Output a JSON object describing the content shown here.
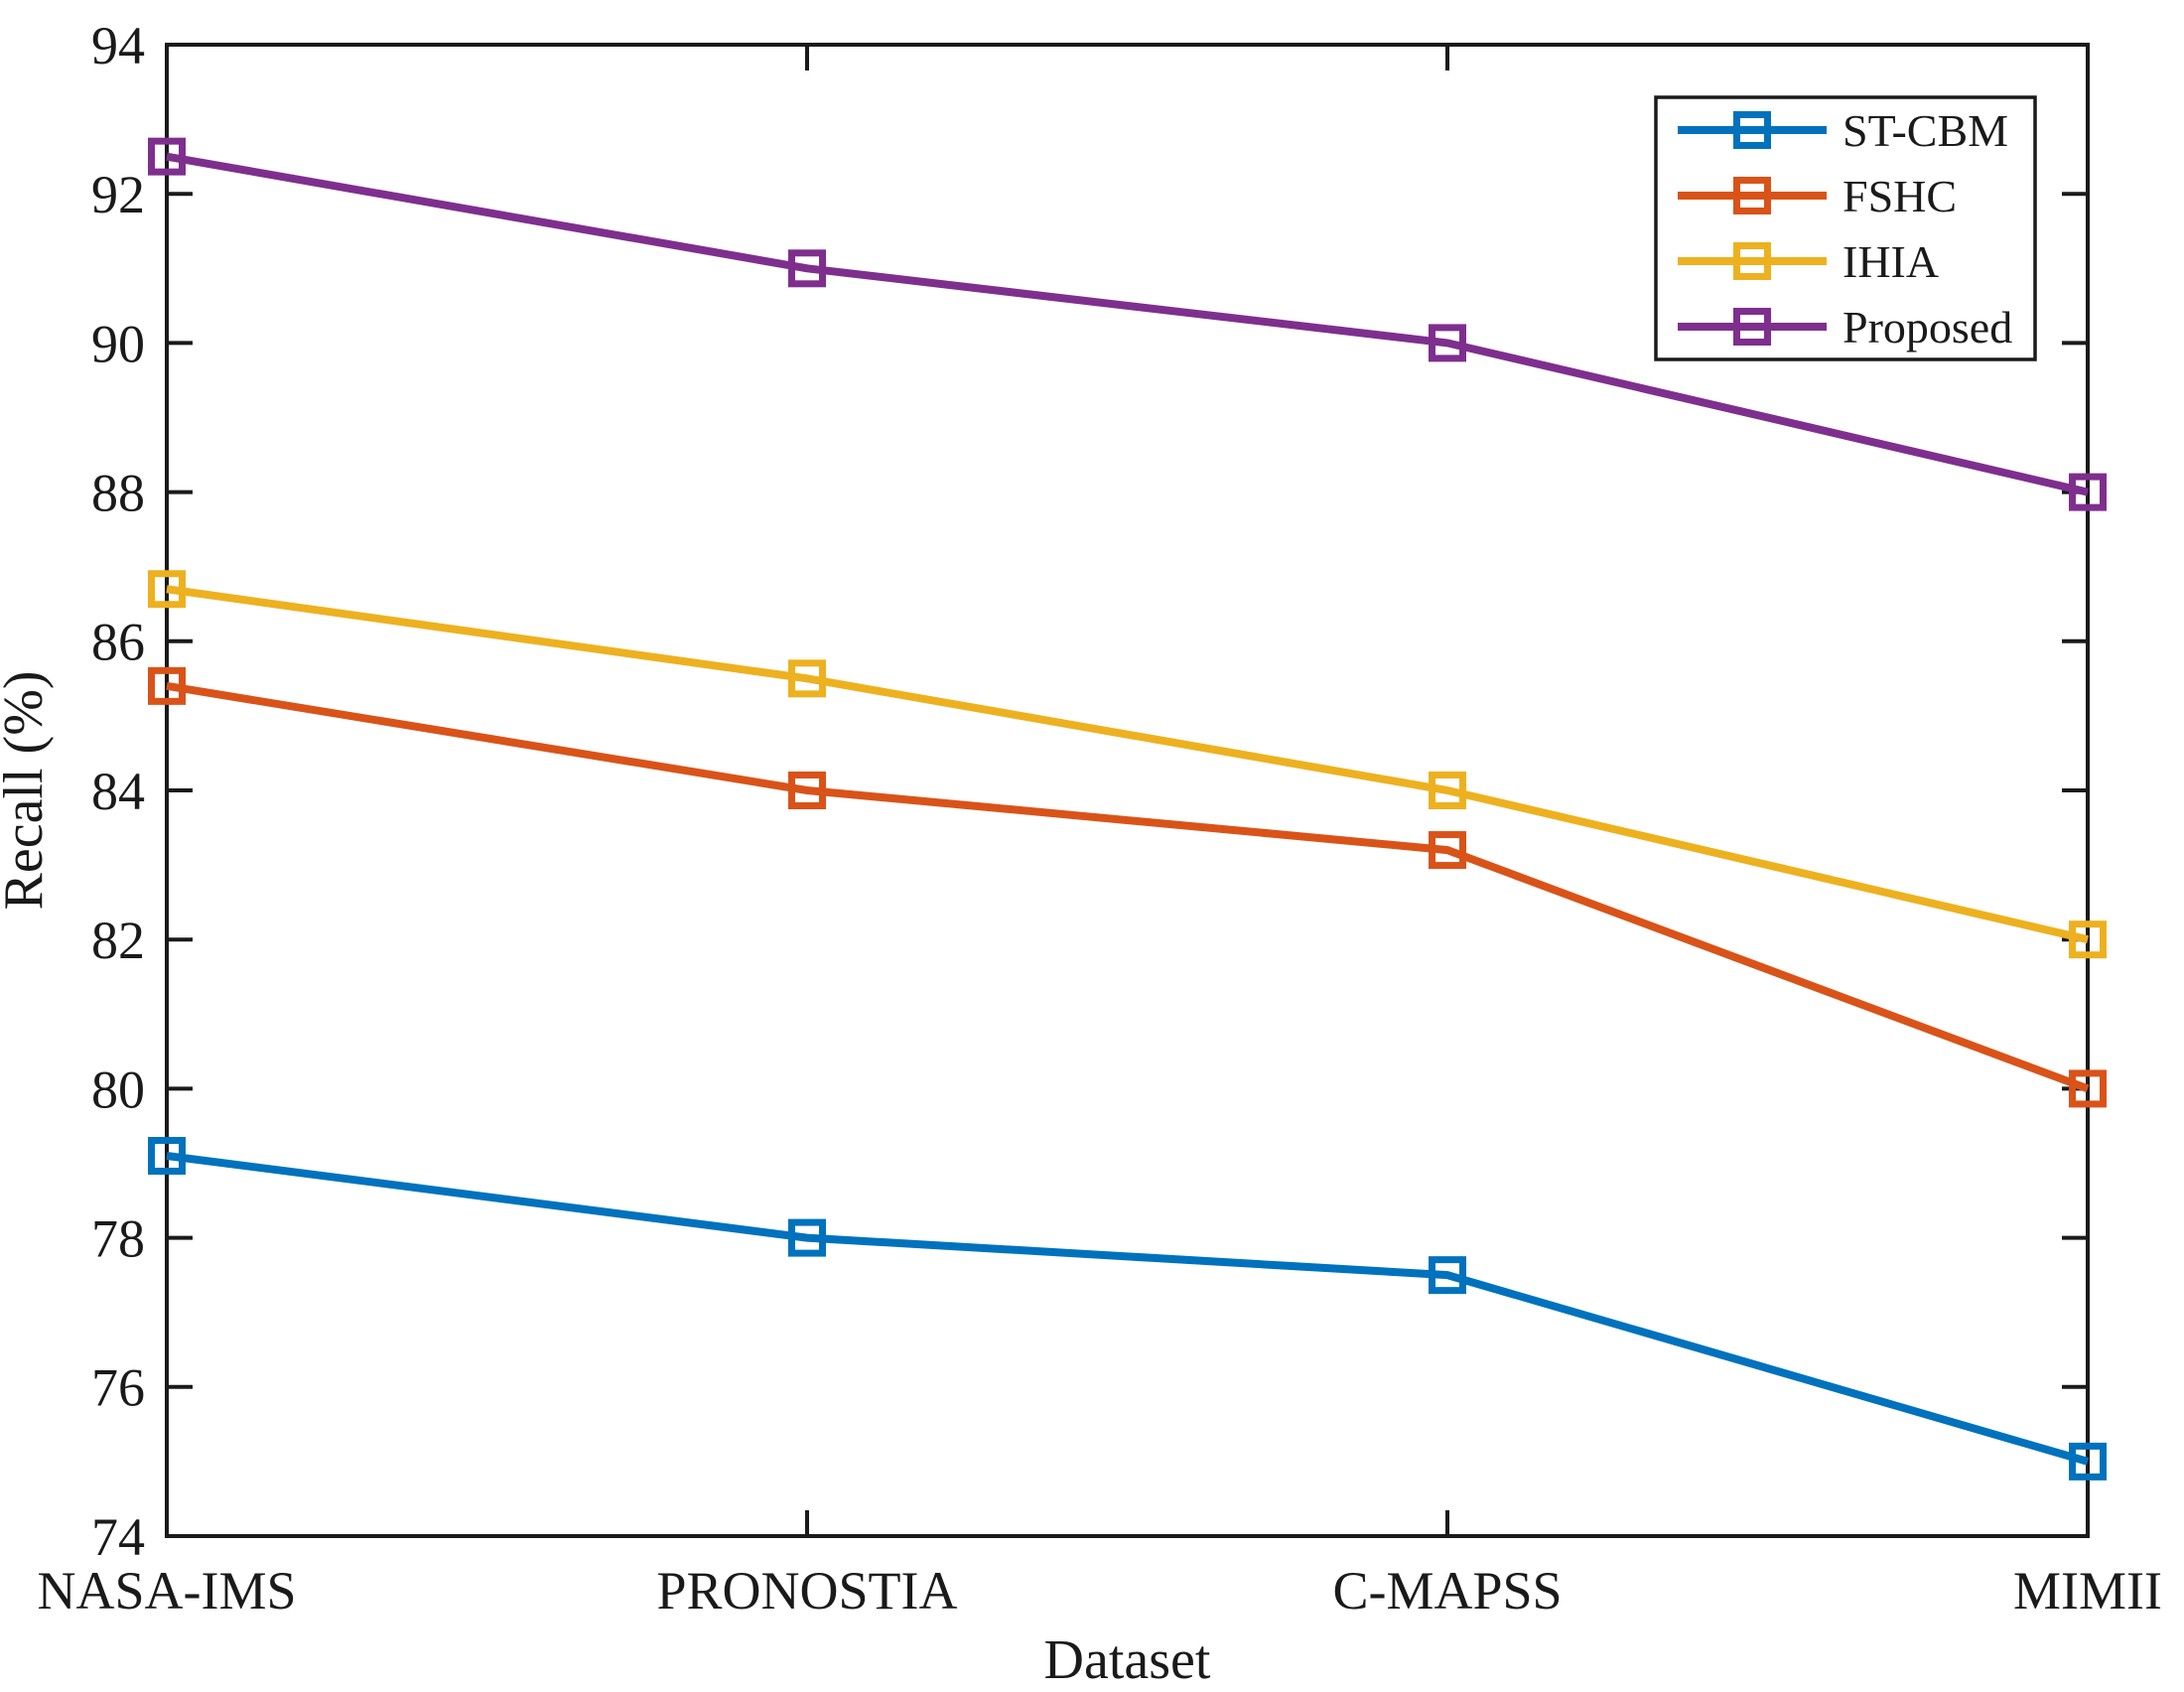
{
  "figure": {
    "xlabel": "Dataset",
    "ylabel": "Recall (%)"
  },
  "chart_data": {
    "type": "line",
    "title": "",
    "xlabel": "Dataset",
    "ylabel": "Recall (%)",
    "categories": [
      "NASA-IMS",
      "PRONOSTIA",
      "C-MAPSS",
      "MIMII"
    ],
    "series": [
      {
        "name": "ST-CBM",
        "color": "#0072BD",
        "values": [
          79.1,
          78.0,
          77.5,
          75.0
        ]
      },
      {
        "name": "FSHC",
        "color": "#D95319",
        "values": [
          85.4,
          84.0,
          83.2,
          80.0
        ]
      },
      {
        "name": "IHIA",
        "color": "#EDB120",
        "values": [
          86.7,
          85.5,
          84.0,
          82.0
        ]
      },
      {
        "name": "Proposed",
        "color": "#7E2F8E",
        "values": [
          92.5,
          91.0,
          90.0,
          88.0
        ]
      }
    ],
    "ylim": [
      74,
      94
    ],
    "yticks": [
      74,
      76,
      78,
      80,
      82,
      84,
      86,
      88,
      90,
      92,
      94
    ],
    "grid": false,
    "marker": "hollow-square",
    "legend_position": "top-right",
    "legend_entries": [
      "ST-CBM",
      "FSHC",
      "IHIA",
      "Proposed"
    ],
    "axis_color": "#1a1a1a"
  }
}
